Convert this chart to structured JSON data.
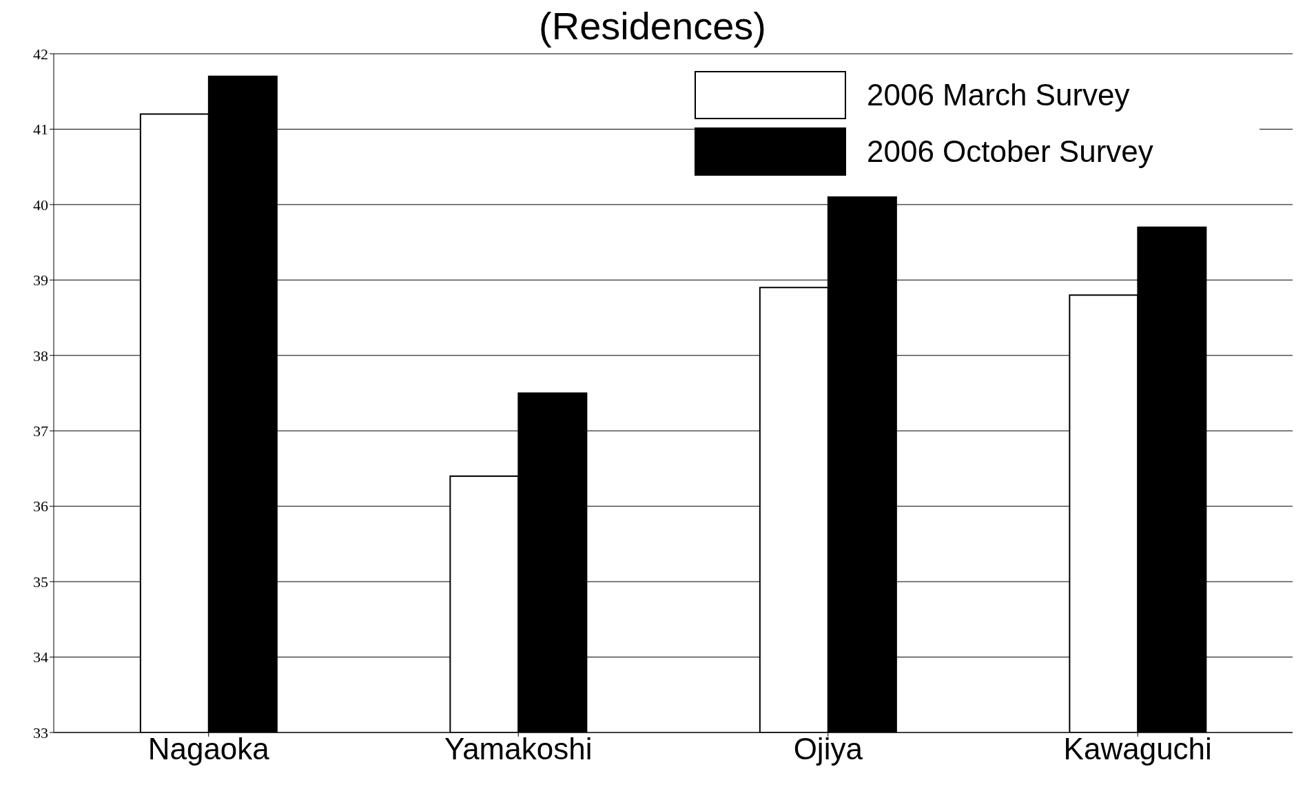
{
  "chart_data": {
    "type": "bar",
    "title": "(Residences)",
    "categories": [
      "Nagaoka",
      "Yamakoshi",
      "Ojiya",
      "Kawaguchi"
    ],
    "series": [
      {
        "name": "2006 March Survey",
        "color": "#ffffff",
        "values": [
          41.2,
          36.4,
          38.9,
          38.8
        ]
      },
      {
        "name": "2006 October Survey",
        "color": "#000000",
        "values": [
          41.7,
          37.5,
          40.1,
          39.7
        ]
      }
    ],
    "ylim": [
      33,
      42
    ],
    "yticks": [
      33,
      34,
      35,
      36,
      37,
      38,
      39,
      40,
      41,
      42
    ],
    "grid": "y",
    "legend": "top right"
  }
}
